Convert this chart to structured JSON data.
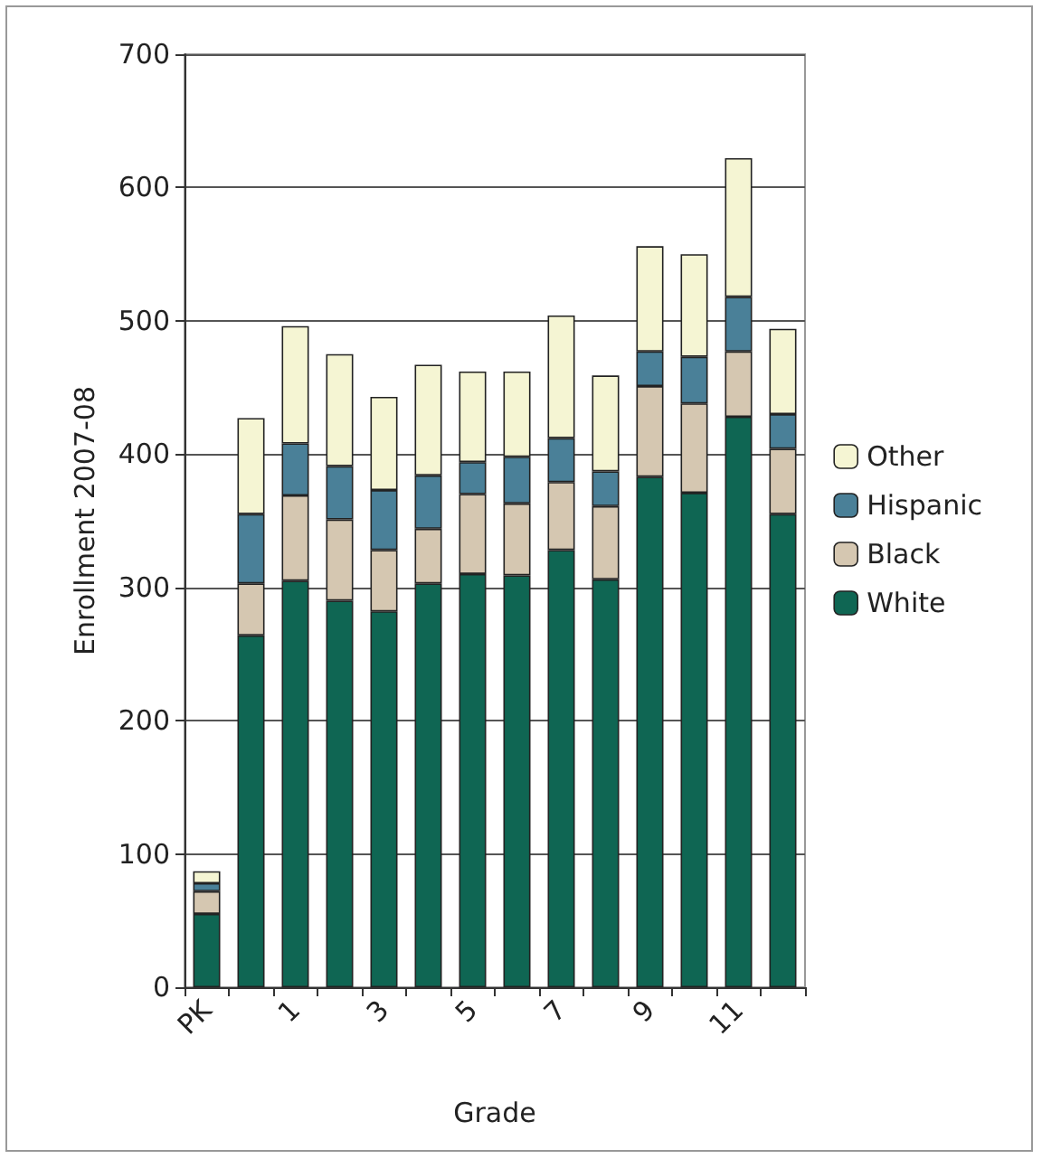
{
  "chart_data": {
    "type": "bar",
    "stacked": true,
    "xlabel": "Grade",
    "ylabel": "Enrollment 2007-08",
    "categories": [
      "PK",
      null,
      "1",
      null,
      "3",
      null,
      "5",
      null,
      "7",
      null,
      "9",
      null,
      "11",
      null
    ],
    "series": [
      {
        "name": "White",
        "color": "#0f6653",
        "values": [
          55,
          264,
          305,
          290,
          282,
          303,
          310,
          309,
          328,
          306,
          383,
          371,
          428,
          355
        ]
      },
      {
        "name": "Black",
        "color": "#d5c7b1",
        "values": [
          17,
          39,
          64,
          61,
          46,
          41,
          60,
          54,
          51,
          55,
          68,
          67,
          49,
          49
        ]
      },
      {
        "name": "Hispanic",
        "color": "#4a8098",
        "values": [
          6,
          52,
          39,
          40,
          45,
          40,
          24,
          35,
          33,
          26,
          26,
          35,
          41,
          26
        ]
      },
      {
        "name": "Other",
        "color": "#f5f5d3",
        "values": [
          9,
          72,
          88,
          84,
          70,
          83,
          68,
          64,
          92,
          72,
          79,
          77,
          104,
          64
        ]
      }
    ],
    "ylim": [
      0,
      700
    ],
    "yticks": [
      0,
      100,
      200,
      300,
      400,
      500,
      600,
      700
    ],
    "grid": "y",
    "legend": "right"
  }
}
